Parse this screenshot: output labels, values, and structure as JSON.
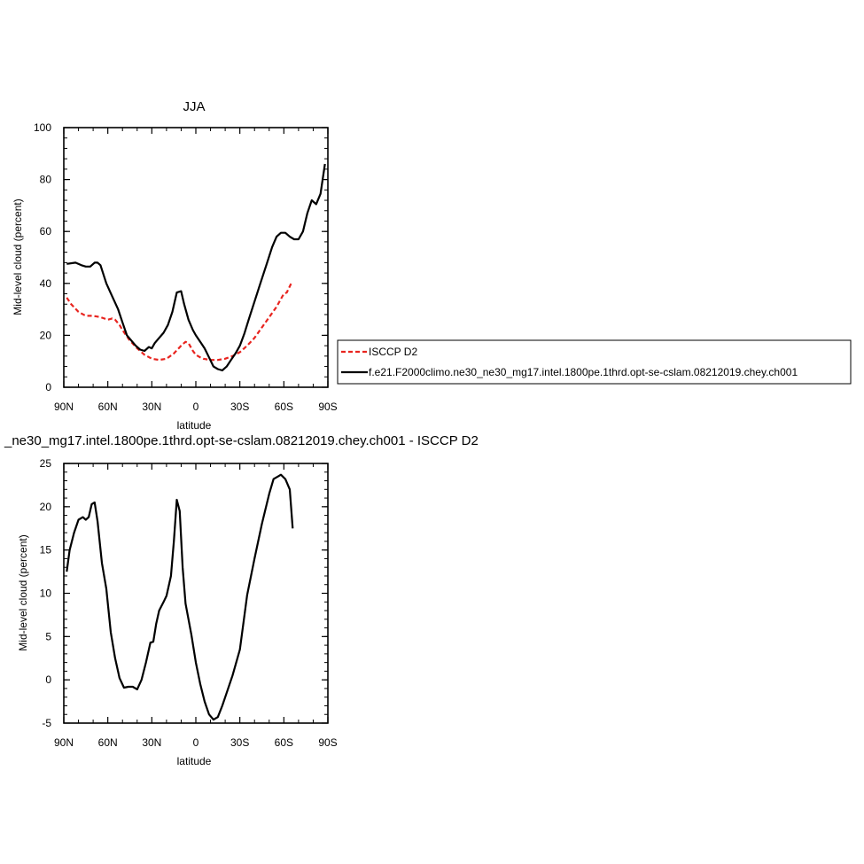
{
  "chart_data": [
    {
      "type": "line",
      "title": "JJA",
      "xlabel": "latitude",
      "ylabel": "Mid-level cloud (percent)",
      "xlim": [
        90,
        -90
      ],
      "ylim": [
        0,
        100
      ],
      "x_ticks": [
        90,
        60,
        30,
        0,
        -30,
        -60,
        -90
      ],
      "x_tick_labels": [
        "90N",
        "60N",
        "30N",
        "0",
        "30S",
        "60S",
        "90S"
      ],
      "y_ticks": [
        0,
        20,
        40,
        60,
        80,
        100
      ],
      "y_tick_labels": [
        "0",
        "20",
        "40",
        "60",
        "80",
        "100"
      ],
      "legend_position": "right",
      "series": [
        {
          "name": "ISCCP D2",
          "color": "#e8241f",
          "dash": "dashed",
          "x": [
            88,
            85,
            80,
            75,
            70,
            65,
            60,
            57,
            55,
            52,
            50,
            45,
            40,
            35,
            30,
            25,
            20,
            15,
            10,
            7,
            5,
            2,
            0,
            -3,
            -5,
            -10,
            -15,
            -20,
            -25,
            -30,
            -35,
            -40,
            -45,
            -50,
            -55,
            -58,
            -60,
            -62,
            -65
          ],
          "values": [
            34.5,
            32,
            29,
            27.5,
            27.5,
            27,
            26,
            26.5,
            26,
            24,
            22,
            18,
            15,
            12.5,
            11,
            10.5,
            11,
            13,
            16,
            17.5,
            17,
            14,
            12.5,
            11.5,
            11,
            10.5,
            10.5,
            11,
            12,
            13.5,
            16,
            19,
            23,
            27,
            31,
            34,
            36,
            36.5,
            40
          ]
        },
        {
          "name": "f.e21.F2000climo.ne30_ne30_mg17.intel.1800pe.1thrd.opt-se-cslam.08212019.chey.ch001",
          "color": "#000000",
          "dash": "solid",
          "x": [
            88,
            82,
            78,
            75,
            72,
            69,
            67,
            65,
            61,
            57,
            53,
            50,
            47,
            44,
            41,
            38,
            35,
            32,
            30,
            28,
            25,
            22,
            19,
            16,
            13,
            10,
            8,
            5,
            2,
            0,
            -3,
            -6,
            -9,
            -12,
            -15,
            -18,
            -21,
            -24,
            -27,
            -30,
            -33,
            -36,
            -40,
            -44,
            -48,
            -52,
            -55,
            -58,
            -61,
            -64,
            -67,
            -70,
            -73,
            -76,
            -79,
            -82,
            -85,
            -88
          ],
          "values": [
            47.5,
            48,
            47,
            46.5,
            46.5,
            48,
            48,
            47,
            40,
            35,
            30,
            25,
            20,
            18,
            16,
            14.5,
            14,
            15.5,
            15,
            17,
            19,
            21,
            24,
            29,
            36.5,
            37,
            32,
            26,
            22,
            20,
            17.5,
            15,
            11.5,
            8,
            7,
            6.5,
            8,
            10.5,
            13,
            16,
            20.5,
            26,
            33,
            40,
            47,
            54,
            58,
            59.5,
            59.5,
            58,
            57,
            57,
            60,
            67,
            72,
            70.5,
            74.5,
            86
          ]
        }
      ]
    },
    {
      "type": "line",
      "title": "_ne30_mg17.intel.1800pe.1thrd.opt-se-cslam.08212019.chey.ch001 - ISCCP D2",
      "xlabel": "latitude",
      "ylabel": "Mid-level cloud (percent)",
      "xlim": [
        90,
        -90
      ],
      "ylim": [
        -5,
        25
      ],
      "x_ticks": [
        90,
        60,
        30,
        0,
        -30,
        -60,
        -90
      ],
      "x_tick_labels": [
        "90N",
        "60N",
        "30N",
        "0",
        "30S",
        "60S",
        "90S"
      ],
      "y_ticks": [
        -5,
        0,
        5,
        10,
        15,
        20,
        25
      ],
      "y_tick_labels": [
        "-5",
        "0",
        "5",
        "10",
        "15",
        "20",
        "25"
      ],
      "series": [
        {
          "color": "#000000",
          "dash": "solid",
          "x": [
            88,
            86,
            83,
            80,
            77,
            75,
            73,
            71,
            69,
            67,
            64,
            61,
            58,
            55,
            52,
            49,
            46,
            43,
            40,
            37,
            34,
            31,
            29,
            27,
            25,
            22,
            20,
            17,
            15,
            13,
            11,
            9,
            7,
            5,
            3,
            0,
            -3,
            -6,
            -9,
            -12,
            -15,
            -18,
            -21,
            -25,
            -30,
            -35,
            -40,
            -45,
            -50,
            -53,
            -56,
            -58,
            -61,
            -64,
            -66
          ],
          "values": [
            12.5,
            15,
            17,
            18.5,
            18.8,
            18.5,
            18.8,
            20.3,
            20.5,
            18.3,
            13.5,
            10.5,
            5.5,
            2.5,
            0.2,
            -0.9,
            -0.8,
            -0.8,
            -1.1,
            0,
            2,
            4.3,
            4.4,
            6.5,
            8,
            9,
            9.7,
            12,
            16,
            20.8,
            19.5,
            13,
            8.8,
            7,
            5.2,
            2,
            -0.5,
            -2.5,
            -4,
            -4.6,
            -4.3,
            -3,
            -1.5,
            0.5,
            3.5,
            9.8,
            14,
            18,
            21.5,
            23.2,
            23.5,
            23.7,
            23.2,
            22,
            17.5
          ]
        }
      ]
    }
  ]
}
